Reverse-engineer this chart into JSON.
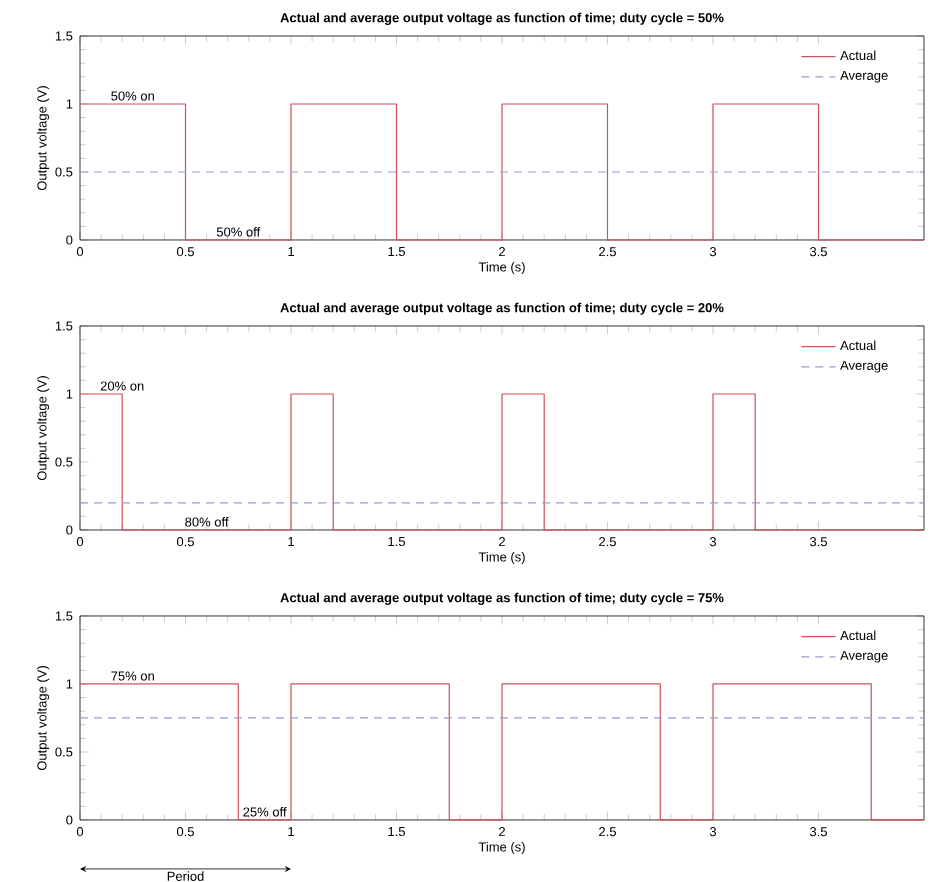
{
  "chart_data": [
    {
      "type": "line",
      "title": "Actual and average output voltage as function of time; duty cycle = 50%",
      "xlabel": "Time (s)",
      "ylabel": "Output voltage (V)",
      "xlim": [
        0,
        4
      ],
      "ylim": [
        0,
        1.5
      ],
      "xticks": [
        0,
        0.5,
        1,
        1.5,
        2,
        2.5,
        3,
        3.5
      ],
      "yticks": [
        0,
        0.5,
        1,
        1.5
      ],
      "legend": "top right",
      "grid": false,
      "series": [
        {
          "name": "Actual",
          "color": "#d0505a",
          "line_style": "solid",
          "x": [
            0,
            0.5,
            0.5,
            1,
            1,
            1.5,
            1.5,
            2,
            2,
            2.5,
            2.5,
            3,
            3,
            3.5,
            3.5,
            4
          ],
          "values": [
            1,
            1,
            0,
            0,
            1,
            1,
            0,
            0,
            1,
            1,
            0,
            0,
            1,
            1,
            0,
            0
          ]
        },
        {
          "name": "Average",
          "color": "#9b9bd6",
          "line_style": "dashed",
          "x": [
            0,
            4
          ],
          "values": [
            0.5,
            0.5
          ]
        }
      ],
      "annotations": [
        {
          "text": "50% on",
          "x": 0.25,
          "y": 1
        },
        {
          "text": "50% off",
          "x": 0.75,
          "y": 0
        }
      ]
    },
    {
      "type": "line",
      "title": "Actual and average output voltage as function of time; duty cycle = 20%",
      "xlabel": "Time (s)",
      "ylabel": "Output voltage (V)",
      "xlim": [
        0,
        4
      ],
      "ylim": [
        0,
        1.5
      ],
      "xticks": [
        0,
        0.5,
        1,
        1.5,
        2,
        2.5,
        3,
        3.5
      ],
      "yticks": [
        0,
        0.5,
        1,
        1.5
      ],
      "legend": "top right",
      "grid": false,
      "series": [
        {
          "name": "Actual",
          "color": "#d0505a",
          "line_style": "solid",
          "x": [
            0,
            0.2,
            0.2,
            1,
            1,
            1.2,
            1.2,
            2,
            2,
            2.2,
            2.2,
            3,
            3,
            3.2,
            3.2,
            4
          ],
          "values": [
            1,
            1,
            0,
            0,
            1,
            1,
            0,
            0,
            1,
            1,
            0,
            0,
            1,
            1,
            0,
            0
          ]
        },
        {
          "name": "Average",
          "color": "#9b9bd6",
          "line_style": "dashed",
          "x": [
            0,
            4
          ],
          "values": [
            0.2,
            0.2
          ]
        }
      ],
      "annotations": [
        {
          "text": "20% on",
          "x": 0.2,
          "y": 1
        },
        {
          "text": "80% off",
          "x": 0.6,
          "y": 0
        }
      ]
    },
    {
      "type": "line",
      "title": "Actual and average output voltage as function of time; duty cycle = 75%",
      "xlabel": "Time (s)",
      "ylabel": "Output voltage (V)",
      "xlim": [
        0,
        4
      ],
      "ylim": [
        0,
        1.5
      ],
      "xticks": [
        0,
        0.5,
        1,
        1.5,
        2,
        2.5,
        3,
        3.5
      ],
      "yticks": [
        0,
        0.5,
        1,
        1.5
      ],
      "legend": "top right",
      "grid": false,
      "series": [
        {
          "name": "Actual",
          "color": "#d0505a",
          "line_style": "solid",
          "x": [
            0,
            0.75,
            0.75,
            1,
            1,
            1.75,
            1.75,
            2,
            2,
            2.75,
            2.75,
            3,
            3,
            3.75,
            3.75,
            4
          ],
          "values": [
            1,
            1,
            0,
            0,
            1,
            1,
            0,
            0,
            1,
            1,
            0,
            0,
            1,
            1,
            0,
            0
          ]
        },
        {
          "name": "Average",
          "color": "#9b9bd6",
          "line_style": "dashed",
          "x": [
            0,
            4
          ],
          "values": [
            0.75,
            0.75
          ]
        }
      ],
      "annotations": [
        {
          "text": "75% on",
          "x": 0.25,
          "y": 1
        },
        {
          "text": "25% off",
          "x": 0.875,
          "y": 0
        },
        "Period"
      ]
    }
  ]
}
